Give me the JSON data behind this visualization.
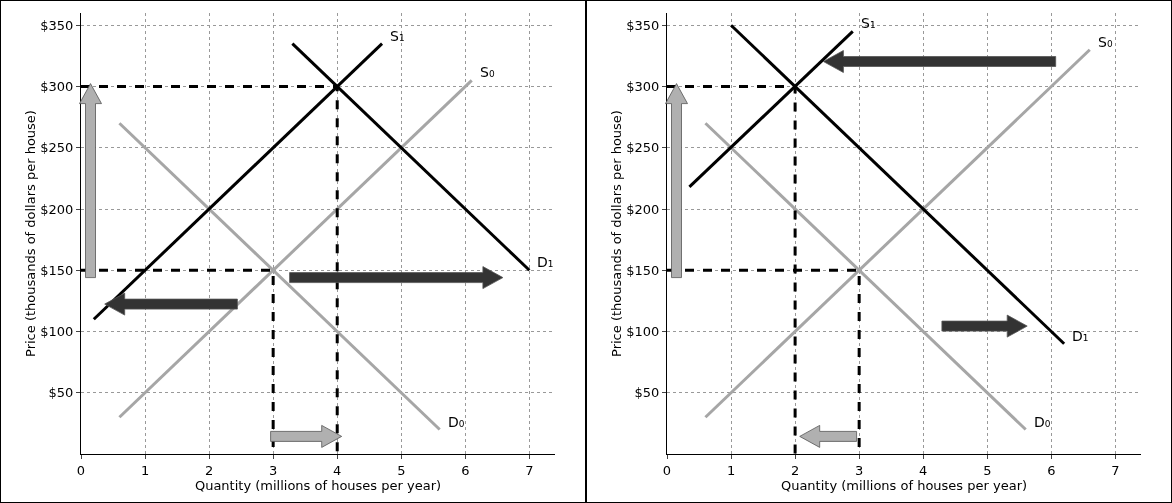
{
  "chart_data": [
    {
      "type": "line",
      "xlabel": "Quantity (millions of houses per year)",
      "ylabel": "Price (thousands of dollars per house)",
      "xlim": [
        0,
        7.4
      ],
      "xticks": [
        0,
        1,
        2,
        3,
        4,
        5,
        6,
        7
      ],
      "ylim": [
        0,
        360
      ],
      "yticks": [
        {
          "value": 50,
          "label": "$50"
        },
        {
          "value": 100,
          "label": "$100"
        },
        {
          "value": 150,
          "label": "$150"
        },
        {
          "value": 200,
          "label": "$200"
        },
        {
          "value": 250,
          "label": "$250"
        },
        {
          "value": 300,
          "label": "$300"
        },
        {
          "value": 350,
          "label": "$350"
        }
      ],
      "grid": true,
      "legend": false,
      "series": [
        {
          "name": "S₀",
          "color": "#a6a6a6",
          "x": [
            0.6,
            6.1
          ],
          "values": [
            30,
            305
          ]
        },
        {
          "name": "D₀",
          "color": "#a6a6a6",
          "x": [
            0.6,
            5.6
          ],
          "values": [
            270,
            20
          ]
        },
        {
          "name": "S₁",
          "color": "#000000",
          "x": [
            0.2,
            4.7
          ],
          "values": [
            110,
            335
          ]
        },
        {
          "name": "D₁",
          "color": "#000000",
          "x": [
            3.3,
            7
          ],
          "values": [
            335,
            150
          ]
        },
        {
          "color": "#000000",
          "x": [
            0,
            4,
            4
          ],
          "values": [
            300,
            300,
            0
          ],
          "line_style": "dashed"
        },
        {
          "color": "#000000",
          "x": [
            0,
            3,
            3
          ],
          "values": [
            150,
            150,
            0
          ],
          "line_style": "dashed"
        }
      ]
    },
    {
      "type": "line",
      "xlabel": "Quantity (millions of houses per year)",
      "ylabel": "Price (thousands of dollars per house)",
      "xlim": [
        0,
        7.4
      ],
      "xticks": [
        0,
        1,
        2,
        3,
        4,
        5,
        6,
        7
      ],
      "ylim": [
        0,
        360
      ],
      "yticks": [
        {
          "value": 50,
          "label": "$50"
        },
        {
          "value": 100,
          "label": "$100"
        },
        {
          "value": 150,
          "label": "$150"
        },
        {
          "value": 200,
          "label": "$200"
        },
        {
          "value": 250,
          "label": "$250"
        },
        {
          "value": 300,
          "label": "$300"
        },
        {
          "value": 350,
          "label": "$350"
        }
      ],
      "grid": true,
      "legend": false,
      "series": [
        {
          "name": "S₀",
          "color": "#a6a6a6",
          "x": [
            0.6,
            6.6
          ],
          "values": [
            30,
            330
          ]
        },
        {
          "name": "D₀",
          "color": "#a6a6a6",
          "x": [
            0.6,
            5.6
          ],
          "values": [
            270,
            20
          ]
        },
        {
          "name": "S₁",
          "color": "#000000",
          "x": [
            0.35,
            2.9
          ],
          "values": [
            218,
            345
          ]
        },
        {
          "name": "D₁",
          "color": "#000000",
          "x": [
            1,
            6.2
          ],
          "values": [
            350,
            90
          ]
        },
        {
          "color": "#000000",
          "x": [
            0,
            2,
            2
          ],
          "values": [
            300,
            300,
            0
          ],
          "line_style": "dashed"
        },
        {
          "color": "#000000",
          "x": [
            0,
            3,
            3
          ],
          "values": [
            150,
            150,
            0
          ],
          "line_style": "dashed"
        }
      ]
    }
  ]
}
